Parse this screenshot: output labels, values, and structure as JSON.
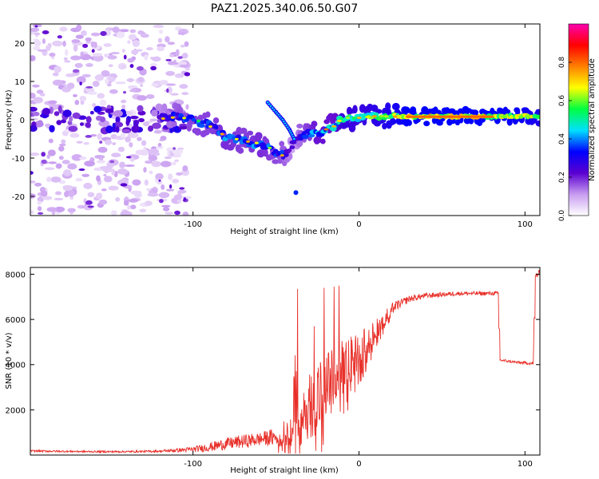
{
  "title": "PAZ1.2025.340.06.50.G07",
  "colors": {
    "snr_line": "#e8302a",
    "background": "#ffffff",
    "spectrogram_bg": "#ffffff"
  },
  "chart_data": [
    {
      "type": "heatmap",
      "name": "spectrogram",
      "xlabel": "Height of straight line (km)",
      "ylabel": "Frequency (Hz)",
      "xlim": [
        -198,
        109
      ],
      "ylim": [
        -25,
        25
      ],
      "xticks": [
        -100,
        0,
        100
      ],
      "xtick_labels": [
        "-100",
        "0",
        "100"
      ],
      "yticks": [
        -20,
        -10,
        0,
        10,
        20
      ],
      "ytick_labels": [
        "-20",
        "-10",
        "0",
        "10",
        "20"
      ],
      "colorbar": {
        "label": "Normalized spectral amplitude",
        "range": [
          0,
          1
        ],
        "ticks": [
          0.0,
          0.2,
          0.4,
          0.6,
          0.8
        ],
        "tick_labels": [
          "0.0",
          "0.2",
          "0.4",
          "0.6",
          "0.8"
        ],
        "colormap": [
          "#ffffff",
          "#c89cf0",
          "#5a00d0",
          "#0000ff",
          "#00e0ff",
          "#00ff40",
          "#ffff00",
          "#ff8000",
          "#ff0000",
          "#ff00b0"
        ]
      },
      "features": {
        "noise_region_x": [
          -198,
          -103
        ],
        "tracking_start_x": -120,
        "ridge": [
          {
            "x": -120,
            "y": 0.5,
            "a": 0.35
          },
          {
            "x": -110,
            "y": 1.0,
            "a": 0.45
          },
          {
            "x": -100,
            "y": 0.0,
            "a": 0.5
          },
          {
            "x": -90,
            "y": -1.5,
            "a": 0.5
          },
          {
            "x": -80,
            "y": -4.5,
            "a": 0.55
          },
          {
            "x": -70,
            "y": -5.5,
            "a": 0.5
          },
          {
            "x": -60,
            "y": -6.5,
            "a": 0.55
          },
          {
            "x": -52,
            "y": -8.0,
            "a": 0.5
          },
          {
            "x": -45,
            "y": -9.5,
            "a": 0.45
          },
          {
            "x": -40,
            "y": -6.0,
            "a": 0.3
          },
          {
            "x": -35,
            "y": -4.0,
            "a": 0.45
          },
          {
            "x": -25,
            "y": -3.5,
            "a": 0.6
          },
          {
            "x": -15,
            "y": -1.5,
            "a": 0.6
          },
          {
            "x": -10,
            "y": 0.5,
            "a": 0.75
          },
          {
            "x": 0,
            "y": 0.5,
            "a": 0.75
          },
          {
            "x": 10,
            "y": 1.0,
            "a": 0.8
          },
          {
            "x": 20,
            "y": 0.8,
            "a": 0.85
          },
          {
            "x": 30,
            "y": 0.8,
            "a": 0.95
          },
          {
            "x": 80,
            "y": 0.8,
            "a": 0.95
          },
          {
            "x": 100,
            "y": 1.0,
            "a": 0.9
          },
          {
            "x": 109,
            "y": 0.8,
            "a": 0.85
          }
        ],
        "spur": [
          {
            "x": -55,
            "y": 4.5
          },
          {
            "x": -50,
            "y": 2.0
          },
          {
            "x": -46,
            "y": 0.0
          },
          {
            "x": -42,
            "y": -2.5
          },
          {
            "x": -39,
            "y": -5.0
          }
        ],
        "isolated_blob": {
          "x": -38,
          "y": -19
        }
      }
    },
    {
      "type": "line",
      "name": "snr",
      "xlabel": "Height of straight line (km)",
      "ylabel": "SNR (10 * v/v)",
      "xlim": [
        -198,
        109
      ],
      "ylim": [
        0,
        8300
      ],
      "xticks": [
        -100,
        0,
        100
      ],
      "xtick_labels": [
        "-100",
        "0",
        "100"
      ],
      "yticks": [
        2000,
        4000,
        6000,
        8000
      ],
      "ytick_labels": [
        "2000",
        "4000",
        "6000",
        "8000"
      ],
      "series": [
        {
          "name": "SNR",
          "x": [
            -198,
            -160,
            -140,
            -120,
            -100,
            -90,
            -80,
            -70,
            -60,
            -50,
            -45,
            -40,
            -38,
            -36,
            -33,
            -30,
            -25,
            -20,
            -15,
            -10,
            -5,
            0,
            5,
            10,
            15,
            20,
            30,
            40,
            50,
            60,
            70,
            80,
            84,
            85,
            95,
            105,
            106,
            107,
            109
          ],
          "y": [
            180,
            150,
            150,
            170,
            250,
            350,
            500,
            600,
            700,
            800,
            950,
            1300,
            3500,
            600,
            1800,
            2200,
            2600,
            3000,
            3400,
            3800,
            4200,
            4600,
            5000,
            5500,
            6000,
            6500,
            6900,
            7050,
            7100,
            7150,
            7150,
            7150,
            7150,
            4200,
            4100,
            4050,
            7900,
            7950,
            8050
          ],
          "noise": [
            40,
            40,
            40,
            50,
            120,
            200,
            260,
            300,
            300,
            400,
            600,
            900,
            2500,
            700,
            1200,
            1500,
            1600,
            1500,
            1400,
            1300,
            1100,
            900,
            700,
            500,
            350,
            250,
            150,
            120,
            100,
            90,
            90,
            90,
            90,
            60,
            60,
            60,
            150,
            150,
            150
          ],
          "spikes": [
            {
              "x": -37,
              "y": 7350
            },
            {
              "x": -21,
              "y": 7400
            },
            {
              "x": -15,
              "y": 7450
            },
            {
              "x": -12,
              "y": 7500
            },
            {
              "x": -27,
              "y": 5700
            }
          ]
        }
      ]
    }
  ]
}
